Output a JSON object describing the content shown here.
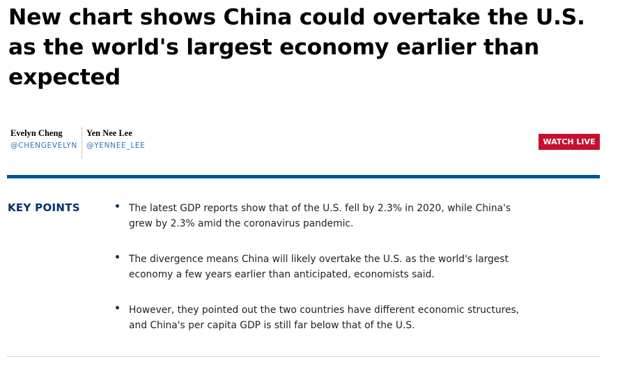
{
  "article": {
    "headline": "New chart shows China could overtake the U.S. as the world's largest economy earlier than expected"
  },
  "authors": [
    {
      "name": "Evelyn Cheng",
      "handle": "@CHENGEVELYN"
    },
    {
      "name": "Yen Nee Lee",
      "handle": "@YENNEE_LEE"
    }
  ],
  "watch_live": {
    "label": "WATCH LIVE",
    "color": "#c8102e"
  },
  "key_points": {
    "heading": "KEY POINTS",
    "items": [
      "The latest GDP reports show that of the U.S. fell by 2.3% in 2020, while China's grew by 2.3% amid the coronavirus pandemic.",
      "The divergence means China will likely overtake the U.S. as the world's largest economy a few years earlier than anticipated, economists said.",
      "However, they pointed out the two countries have different economic structures, and China's per capita GDP is still far below that of the U.S."
    ]
  },
  "colors": {
    "accent_rule": "#005594",
    "key_points_heading": "#002f6c",
    "handle_link": "#2e74b5"
  }
}
